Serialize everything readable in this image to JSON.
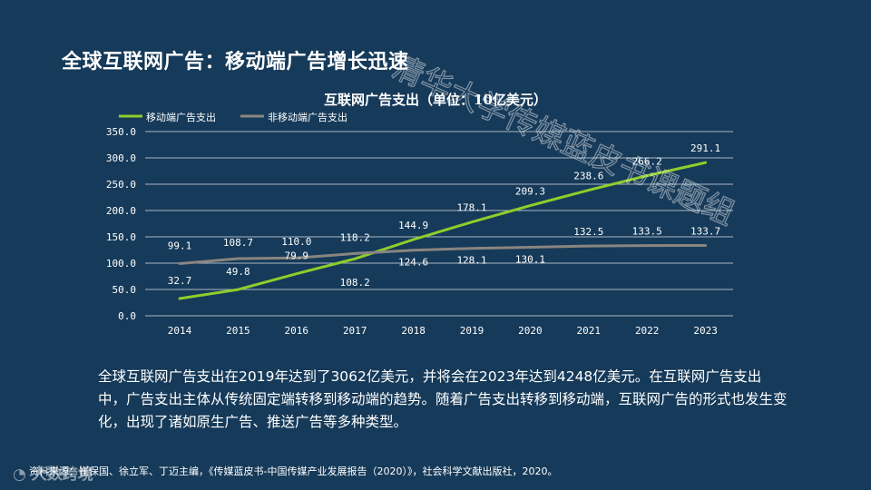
{
  "slide": {
    "title": "全球互联网广告：移动端广告增长迅速",
    "body": "全球互联网广告支出在2019年达到了3062亿美元，并将会在2023年达到4248亿美元。在互联网广告支出中，广告支出主体从传统固定端转移到移动端的趋势。随着广告支出转移到移动端，互联网广告的形式也发生变化，出现了诸如原生广告、推送广告等多种类型。",
    "source": "资料来源：崔保国、徐立军、丁迈主编，《传媒蓝皮书-中国传媒产业发展报告（2020）》，社会科学文献出版社，2020。",
    "watermark_text": "清华大学传媒蓝皮书课题组",
    "logo_text": "大数跨境"
  },
  "colors": {
    "background": "#163a59",
    "mobile": "#8fce2b",
    "nonmobile": "#8a8580",
    "grid": "#ffffff",
    "text": "#ffffff"
  },
  "chart_data": {
    "type": "line",
    "title": "互联网广告支出（单位：10亿美元）",
    "xlabel": "",
    "ylabel": "",
    "categories": [
      "2014",
      "2015",
      "2016",
      "2017",
      "2018",
      "2019",
      "2020",
      "2021",
      "2022",
      "2023"
    ],
    "ylim": [
      0,
      350
    ],
    "yticks": [
      "0.0",
      "50.0",
      "100.0",
      "150.0",
      "200.0",
      "250.0",
      "300.0",
      "350.0"
    ],
    "legend_position": "top-left",
    "grid": true,
    "series": [
      {
        "name": "移动端广告支出",
        "values": [
          32.7,
          49.8,
          79.9,
          108.2,
          144.9,
          178.1,
          209.3,
          238.6,
          266.2,
          291.1
        ],
        "labels": [
          "32.7",
          "49.8",
          "79.9",
          "108.2",
          "144.9",
          "178.1",
          "209.3",
          "238.6",
          "266.2",
          "291.1"
        ]
      },
      {
        "name": "非移动端广告支出",
        "values": [
          99.1,
          108.7,
          110.0,
          118.2,
          124.6,
          128.1,
          130.1,
          132.5,
          133.5,
          133.7
        ],
        "labels": [
          "99.1",
          "108.7",
          "110.0",
          "118.2",
          "124.6",
          "128.1",
          "130.1",
          "132.5",
          "133.5",
          "133.7"
        ]
      }
    ]
  }
}
